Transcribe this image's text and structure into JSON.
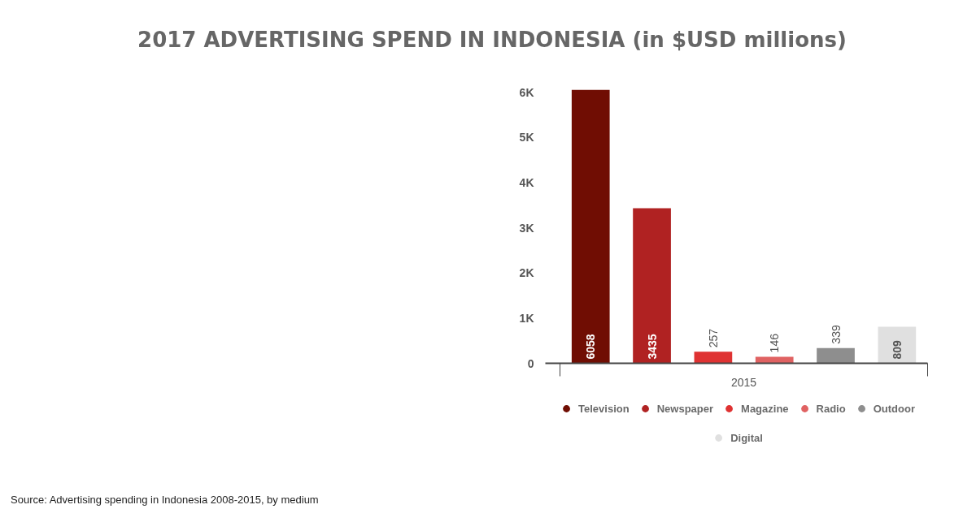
{
  "chart_data": {
    "type": "bar",
    "title": "2017 ADVERTISING SPEND IN INDONESIA (in $USD millions)",
    "categories": [
      "2015"
    ],
    "series": [
      {
        "name": "Television",
        "color": "#700d03",
        "values": [
          6058
        ]
      },
      {
        "name": "Newspaper",
        "color": "#b02222",
        "values": [
          3435
        ]
      },
      {
        "name": "Magazine",
        "color": "#df3232",
        "values": [
          257
        ]
      },
      {
        "name": "Radio",
        "color": "#e06262",
        "values": [
          146
        ]
      },
      {
        "name": "Outdoor",
        "color": "#8e8e8e",
        "values": [
          339
        ]
      },
      {
        "name": "Digital",
        "color": "#e0e0e0",
        "values": [
          809
        ]
      }
    ],
    "ylim": [
      0,
      6058
    ],
    "yticks": [
      0,
      {
        "value": 1000,
        "label": "1K"
      },
      {
        "value": 2000,
        "label": "2K"
      },
      {
        "value": 3000,
        "label": "3K"
      },
      {
        "value": 4000,
        "label": "4K"
      },
      {
        "value": 5000,
        "label": "5K"
      },
      {
        "value": 6000,
        "label": "6K"
      }
    ],
    "grid": false,
    "legend": "bottom",
    "data_labels": true,
    "annotations": [
      "Source: Advertising spending in Indonesia 2008-2015, by medium"
    ]
  }
}
